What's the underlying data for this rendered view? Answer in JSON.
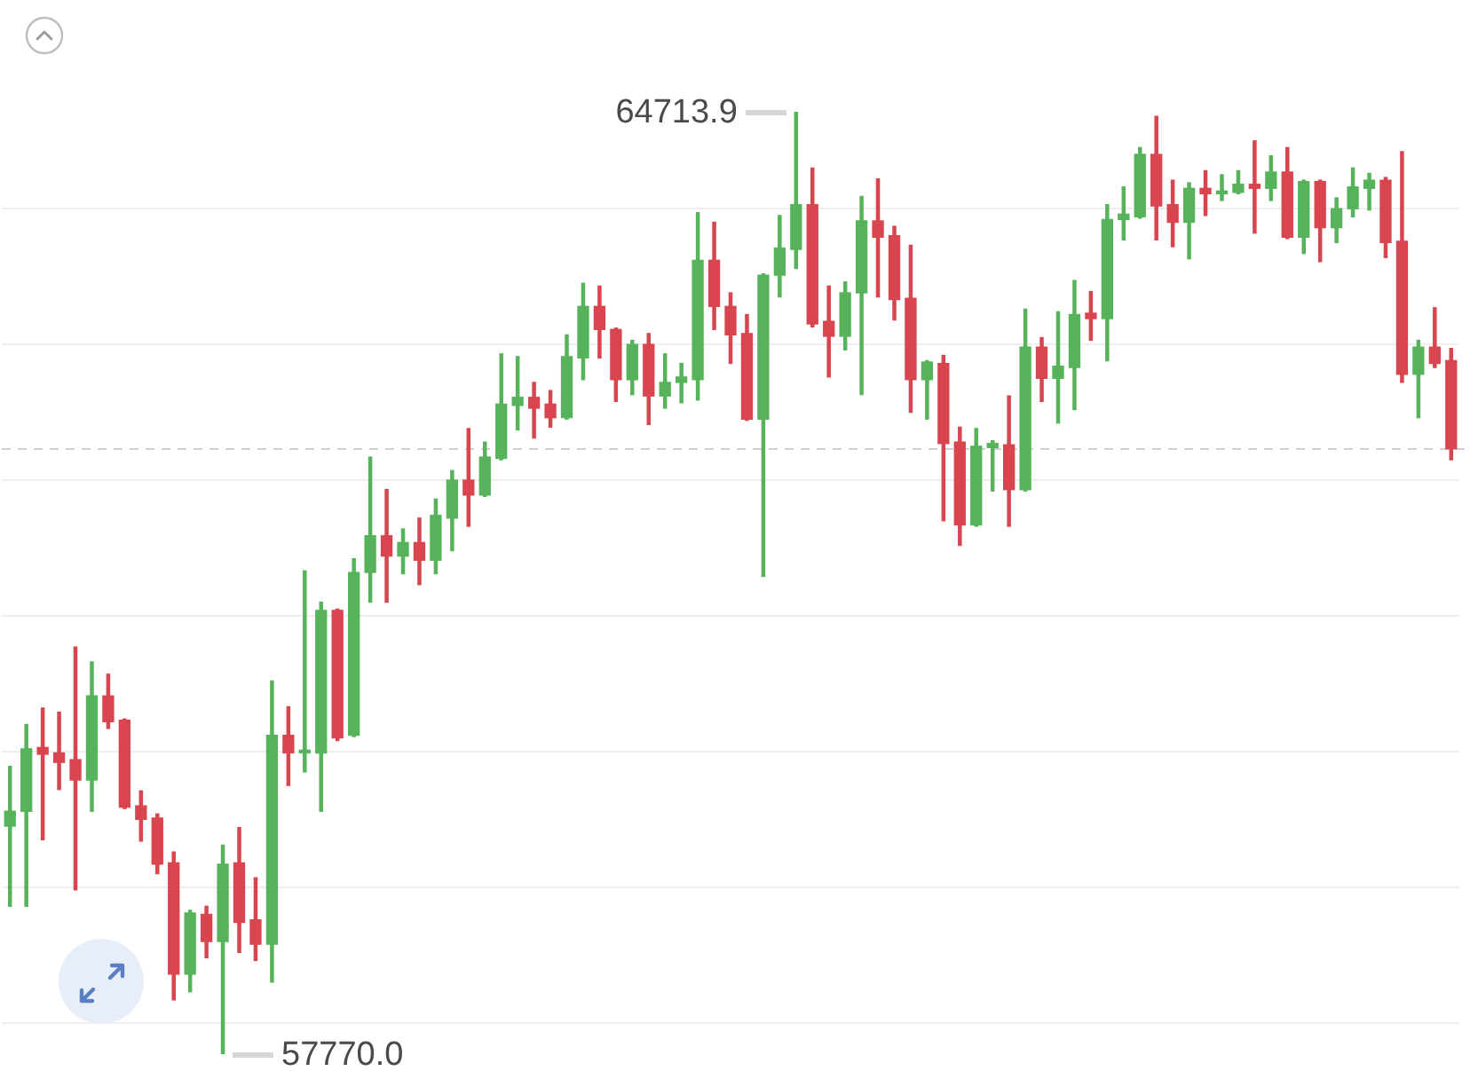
{
  "chart_data": {
    "type": "candlestick",
    "categories": [
      null,
      null,
      null,
      null,
      null,
      null,
      null,
      null,
      null,
      null,
      null,
      null,
      null,
      null,
      null,
      null,
      null,
      null,
      null,
      null,
      null,
      null,
      null,
      null,
      null,
      null,
      null,
      null,
      null,
      null,
      null,
      null,
      null,
      null,
      null,
      null,
      null,
      null,
      null,
      null,
      null,
      null,
      null,
      null,
      null,
      null,
      null,
      null,
      null,
      null,
      null,
      null,
      null,
      null,
      null,
      null,
      null,
      null,
      null,
      null,
      null,
      null,
      null,
      null,
      null,
      null,
      null,
      null,
      null,
      null,
      null,
      null,
      null,
      null,
      null,
      null,
      null,
      null,
      null,
      null,
      null,
      null,
      null,
      null,
      null,
      null,
      null,
      null,
      null
    ],
    "ohlc": [
      [
        59450,
        59890,
        58860,
        59560
      ],
      [
        59560,
        60200,
        58860,
        60020
      ],
      [
        60030,
        60320,
        59350,
        59980
      ],
      [
        59990,
        60290,
        59720,
        59920
      ],
      [
        59940,
        60770,
        58980,
        59790
      ],
      [
        59790,
        60660,
        59560,
        60410
      ],
      [
        60410,
        60570,
        60170,
        60220
      ],
      [
        60230,
        60240,
        59580,
        59590
      ],
      [
        59600,
        59710,
        59340,
        59500
      ],
      [
        59510,
        59540,
        59100,
        59170
      ],
      [
        59180,
        59260,
        58170,
        58360
      ],
      [
        58360,
        58830,
        58230,
        58810
      ],
      [
        58800,
        58860,
        58480,
        58600
      ],
      [
        58600,
        59310,
        57770.0,
        59170
      ],
      [
        59180,
        59440,
        58520,
        58740
      ],
      [
        58760,
        59070,
        58460,
        58580
      ],
      [
        58580,
        60520,
        58300,
        60120
      ],
      [
        60120,
        60330,
        59750,
        59990
      ],
      [
        59990,
        61330,
        59850,
        60010
      ],
      [
        59990,
        61100,
        59560,
        61040
      ],
      [
        61040,
        61050,
        60080,
        60100
      ],
      [
        60120,
        61420,
        60110,
        61320
      ],
      [
        61320,
        62170,
        61100,
        61590
      ],
      [
        61590,
        61930,
        61100,
        61440
      ],
      [
        61440,
        61640,
        61310,
        61540
      ],
      [
        61540,
        61720,
        61230,
        61410
      ],
      [
        61410,
        61860,
        61310,
        61740
      ],
      [
        61720,
        62070,
        61480,
        62000
      ],
      [
        62000,
        62380,
        61660,
        61890
      ],
      [
        61890,
        62280,
        61880,
        62170
      ],
      [
        62160,
        62930,
        62150,
        62560
      ],
      [
        62550,
        62910,
        62370,
        62610
      ],
      [
        62610,
        62720,
        62310,
        62530
      ],
      [
        62560,
        62660,
        62390,
        62460
      ],
      [
        62460,
        63070,
        62450,
        62910
      ],
      [
        62900,
        63450,
        62740,
        63280
      ],
      [
        63280,
        63430,
        62900,
        63110
      ],
      [
        63110,
        63120,
        62580,
        62740
      ],
      [
        62740,
        63030,
        62630,
        63000
      ],
      [
        63000,
        63080,
        62410,
        62620
      ],
      [
        62620,
        62930,
        62530,
        62720
      ],
      [
        62720,
        62860,
        62570,
        62760
      ],
      [
        62740,
        63970,
        62590,
        63620
      ],
      [
        63620,
        63900,
        63110,
        63280
      ],
      [
        63280,
        63380,
        62860,
        63070
      ],
      [
        63080,
        63220,
        62440,
        62450
      ],
      [
        62450,
        63520,
        61290,
        63510
      ],
      [
        63510,
        63950,
        63350,
        63710
      ],
      [
        63700,
        64713.9,
        63560,
        64030
      ],
      [
        64030,
        64300,
        63130,
        63150
      ],
      [
        63170,
        63430,
        62760,
        63060
      ],
      [
        63060,
        63460,
        62960,
        63380
      ],
      [
        63380,
        64090,
        62630,
        63910
      ],
      [
        63910,
        64220,
        63350,
        63790
      ],
      [
        63800,
        63870,
        63180,
        63330
      ],
      [
        63340,
        63730,
        62500,
        62740
      ],
      [
        62740,
        62880,
        62450,
        62870
      ],
      [
        62860,
        62920,
        61700,
        62270
      ],
      [
        62280,
        62390,
        61520,
        61670
      ],
      [
        61670,
        62380,
        61660,
        62250
      ],
      [
        62240,
        62290,
        61920,
        62270
      ],
      [
        62260,
        62620,
        61660,
        61930
      ],
      [
        61930,
        63260,
        61920,
        62980
      ],
      [
        62980,
        63050,
        62580,
        62750
      ],
      [
        62750,
        63240,
        62420,
        62840
      ],
      [
        62830,
        63470,
        62520,
        63220
      ],
      [
        63230,
        63390,
        63030,
        63190
      ],
      [
        63190,
        64030,
        62880,
        63920
      ],
      [
        63920,
        64160,
        63770,
        63960
      ],
      [
        63940,
        64450,
        63930,
        64400
      ],
      [
        64400,
        64680,
        63770,
        64020
      ],
      [
        64030,
        64210,
        63720,
        63900
      ],
      [
        63900,
        64190,
        63630,
        64150
      ],
      [
        64150,
        64280,
        63950,
        64110
      ],
      [
        64110,
        64250,
        64060,
        64130
      ],
      [
        64120,
        64280,
        64110,
        64180
      ],
      [
        64180,
        64500,
        63820,
        64150
      ],
      [
        64150,
        64390,
        64060,
        64270
      ],
      [
        64270,
        64450,
        63780,
        63790
      ],
      [
        63790,
        64210,
        63670,
        64200
      ],
      [
        64200,
        64210,
        63610,
        63860
      ],
      [
        63860,
        64080,
        63750,
        64000
      ],
      [
        64000,
        64300,
        63940,
        64160
      ],
      [
        64150,
        64260,
        63990,
        64210
      ],
      [
        64210,
        64230,
        63640,
        63750
      ],
      [
        63760,
        64420,
        62720,
        62780
      ],
      [
        62780,
        63030,
        62460,
        62980
      ],
      [
        62980,
        63270,
        62830,
        62860
      ],
      [
        62880,
        62970,
        62150,
        62230
      ]
    ],
    "colors": [
      "#57b35b",
      "#57b35b",
      "#d9454f",
      "#d9454f",
      "#d9454f",
      "#57b35b",
      "#d9454f",
      "#d9454f",
      "#d9454f",
      "#d9454f",
      "#d9454f",
      "#57b35b",
      "#d9454f",
      "#57b35b",
      "#d9454f",
      "#d9454f",
      "#57b35b",
      "#d9454f",
      "#57b35b",
      "#57b35b",
      "#d9454f",
      "#57b35b",
      "#57b35b",
      "#d9454f",
      "#57b35b",
      "#d9454f",
      "#57b35b",
      "#57b35b",
      "#d9454f",
      "#57b35b",
      "#57b35b",
      "#57b35b",
      "#d9454f",
      "#d9454f",
      "#57b35b",
      "#57b35b",
      "#d9454f",
      "#d9454f",
      "#57b35b",
      "#d9454f",
      "#57b35b",
      "#57b35b",
      "#57b35b",
      "#d9454f",
      "#d9454f",
      "#d9454f",
      "#57b35b",
      "#57b35b",
      "#57b35b",
      "#d9454f",
      "#d9454f",
      "#57b35b",
      "#57b35b",
      "#d9454f",
      "#d9454f",
      "#d9454f",
      "#57b35b",
      "#d9454f",
      "#d9454f",
      "#57b35b",
      "#57b35b",
      "#d9454f",
      "#57b35b",
      "#d9454f",
      "#57b35b",
      "#57b35b",
      "#d9454f",
      "#57b35b",
      "#57b35b",
      "#57b35b",
      "#d9454f",
      "#d9454f",
      "#57b35b",
      "#d9454f",
      "#57b35b",
      "#57b35b",
      "#d9454f",
      "#57b35b",
      "#d9454f",
      "#57b35b",
      "#d9454f",
      "#57b35b",
      "#57b35b",
      "#57b35b",
      "#d9454f",
      "#d9454f",
      "#57b35b",
      "#d9454f",
      "#d9454f"
    ],
    "yticks": [
      {
        "value": 58000,
        "label": null
      },
      {
        "value": 59000,
        "label": null
      },
      {
        "value": 60000,
        "label": null
      },
      {
        "value": 61000,
        "label": null
      },
      {
        "value": 62000,
        "label": null
      },
      {
        "value": 63000,
        "label": null
      },
      {
        "value": 64000,
        "label": null
      }
    ],
    "grid": "y",
    "ref_lines": [
      {
        "axis": "y",
        "value": 62230,
        "color": "#cfcfcf",
        "line_style": "dashed"
      }
    ],
    "annotations": [
      "64713.9",
      "57770.0"
    ]
  }
}
